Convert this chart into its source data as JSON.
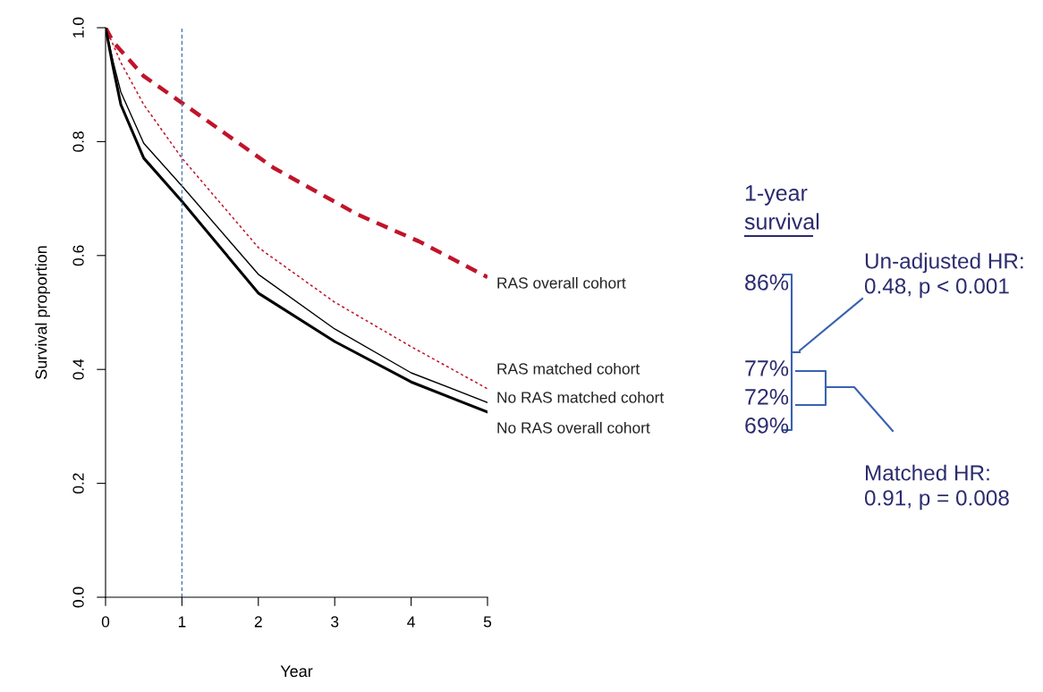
{
  "chart_data": {
    "type": "line",
    "xlabel": "Year",
    "ylabel": "Survival proportion",
    "xlim": [
      0,
      5
    ],
    "ylim": [
      0,
      1
    ],
    "xticks": [
      0,
      1,
      2,
      3,
      4,
      5
    ],
    "yticks": [
      {
        "value": 0,
        "label": "0.0"
      },
      {
        "value": 0.2,
        "label": "0.2"
      },
      {
        "value": 0.4,
        "label": "0.4"
      },
      {
        "value": 0.6,
        "label": "0.6"
      },
      {
        "value": 0.8,
        "label": "0.8"
      },
      {
        "value": 1,
        "label": "1.0"
      }
    ],
    "grid": false,
    "legend": false,
    "marker": "none",
    "x": [
      0,
      0.1,
      0.2,
      0.5,
      1,
      2,
      3,
      4,
      5
    ],
    "series": [
      {
        "name": "RAS overall cohort",
        "color": "#c0142a",
        "line_style": "dashed",
        "x": [
          0,
          0.1,
          0.5,
          1,
          2.2,
          3.3,
          4.1,
          5
        ],
        "values": [
          1.0,
          0.975,
          0.915,
          0.868,
          0.754,
          0.672,
          0.625,
          0.562
        ]
      },
      {
        "name": "RAS matched cohort",
        "color": "#c0142a",
        "line_style": "dotted",
        "values": [
          1.0,
          0.97,
          0.939,
          0.865,
          0.771,
          0.614,
          0.518,
          0.44,
          0.366
        ]
      },
      {
        "name": "No RAS matched cohort",
        "color": "#000000",
        "line_style": "solid",
        "values": [
          1.0,
          0.94,
          0.887,
          0.797,
          0.722,
          0.567,
          0.471,
          0.394,
          0.342
        ]
      },
      {
        "name": "No RAS overall cohort",
        "color": "#000000",
        "line_style": "solid",
        "values": [
          1.0,
          0.93,
          0.865,
          0.771,
          0.695,
          0.534,
          0.449,
          0.378,
          0.325
        ]
      }
    ],
    "ref_lines": [
      {
        "axis": "x",
        "value": 1,
        "color": "#4a7ab5",
        "line_style": "dashed"
      }
    ],
    "annotations": [
      "1-year",
      "survival",
      "86%",
      "77%",
      "72%",
      "69%",
      "Un-adjusted HR:\n0.48, p < 0.001",
      "Matched HR:\n0.91, p = 0.008"
    ]
  }
}
